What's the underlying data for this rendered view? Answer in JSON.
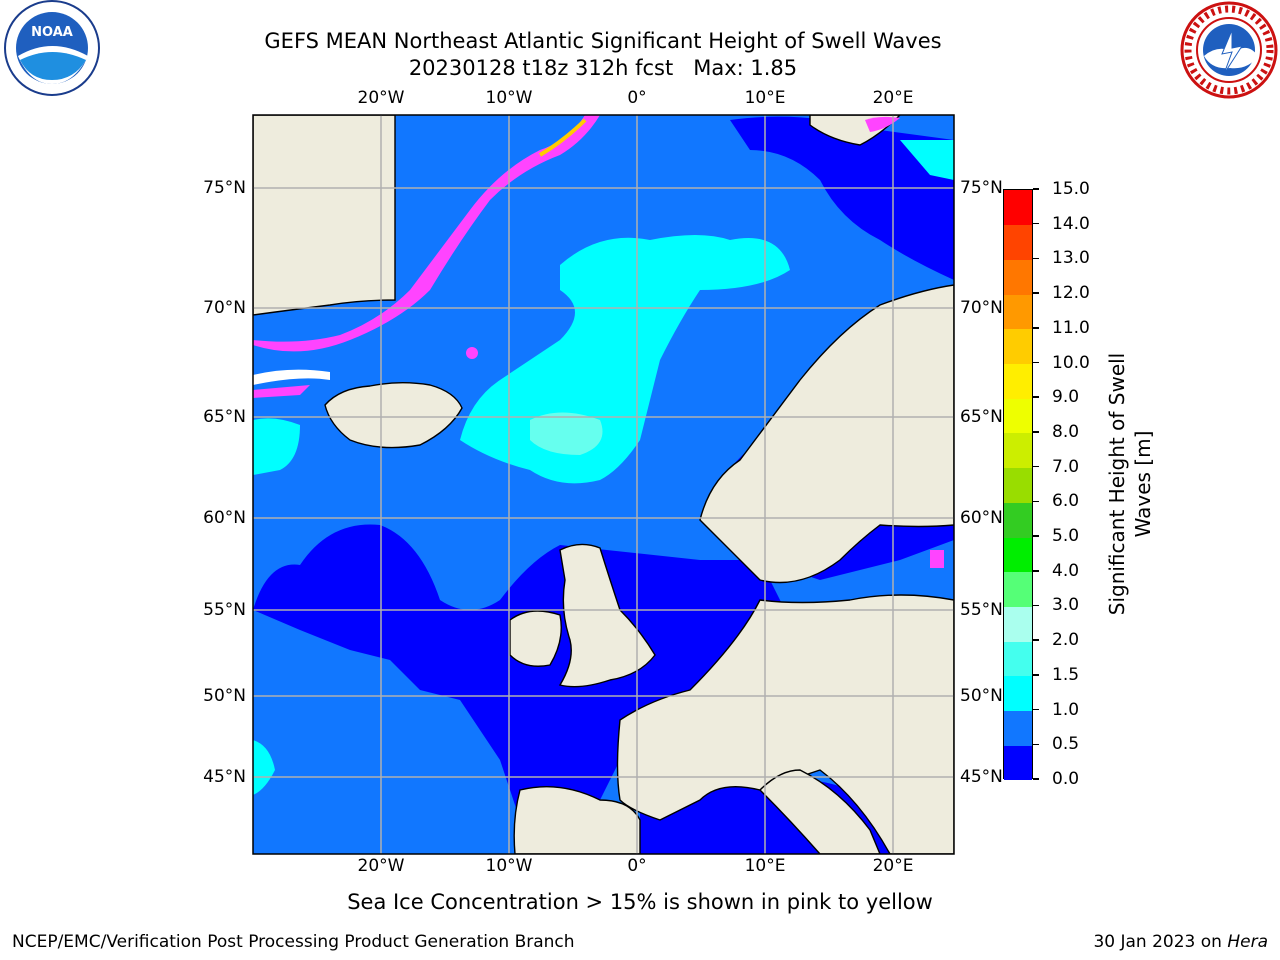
{
  "title_line1": "GEFS MEAN Northeast Atlantic Significant Height of Swell Waves",
  "title_line2": "20230128 t18z 312h fcst   Max: 1.85",
  "lon_labels": [
    "20°W",
    "10°W",
    "0°",
    "10°E",
    "20°E"
  ],
  "lat_labels": [
    "75°N",
    "70°N",
    "65°N",
    "60°N",
    "55°N",
    "50°N",
    "45°N"
  ],
  "colorbar": {
    "title_line1": "Significant Height of Swell",
    "title_line2": "Waves [m]",
    "levels": [
      "0.0",
      "0.5",
      "1.0",
      "1.5",
      "2.0",
      "3.0",
      "4.0",
      "5.0",
      "6.0",
      "7.0",
      "8.0",
      "9.0",
      "10.0",
      "11.0",
      "12.0",
      "13.0",
      "14.0",
      "15.0"
    ],
    "colors": [
      "#0000ff",
      "#1177ff",
      "#00ffff",
      "#44ffee",
      "#aaffee",
      "#55ff77",
      "#00ee00",
      "#33cc22",
      "#99dd00",
      "#ccee00",
      "#eeff00",
      "#ffee00",
      "#ffcc00",
      "#ff9900",
      "#ff7700",
      "#ff4400",
      "#ff0000"
    ]
  },
  "legend_colors": {
    "land": "#eeecdd",
    "ocean_low": "#0000ff",
    "ocean_mid": "#1177ff",
    "ocean_high": "#00ffff",
    "ice": "#ff44ff",
    "grid": "#b0b0b0"
  },
  "caption": "Sea Ice Concentration > 15% is shown in pink to yellow",
  "footer_left": "NCEP/EMC/Verification Post Processing Product Generation Branch",
  "footer_date": "30 Jan 2023 on",
  "footer_host": "Hera",
  "logos": {
    "left": "noaa-logo",
    "right": "nws-logo",
    "left_text": "NOAA"
  }
}
